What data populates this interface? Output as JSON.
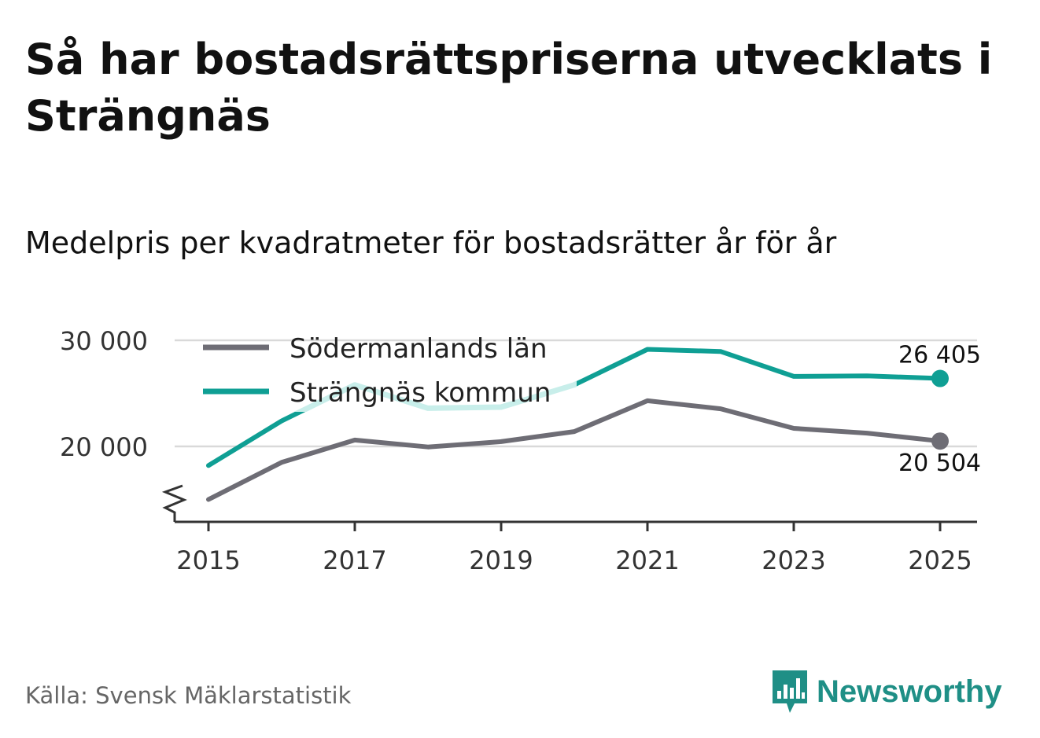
{
  "header": {
    "title": "Så har bostadsrättspriserna utvecklats i Strängnäs",
    "subtitle": "Medelpris per kvadratmeter för bostadsrätter år för år"
  },
  "footer": {
    "source": "Källa: Svensk Mäklarstatistik",
    "brand": "Newsworthy"
  },
  "colors": {
    "lan": "#6e6d75",
    "kommun": "#0f9f94",
    "kommun_faded": "#c8eeea",
    "grid": "#d9d9d9",
    "axis": "#333333"
  },
  "chart_data": {
    "type": "line",
    "title": "Så har bostadsrättspriserna utvecklats i Strängnäs",
    "subtitle": "Medelpris per kvadratmeter för bostadsrätter år för år",
    "xlabel": "",
    "ylabel": "",
    "x": [
      2015,
      2016,
      2017,
      2018,
      2019,
      2020,
      2021,
      2022,
      2023,
      2024,
      2025
    ],
    "xticks": [
      "2015",
      "2017",
      "2019",
      "2021",
      "2023",
      "2025"
    ],
    "yticks": [
      20000,
      30000
    ],
    "ytick_labels": [
      "20 000",
      "30 000"
    ],
    "ylim": [
      13000,
      31500
    ],
    "xlim": [
      2014.75,
      2025.5
    ],
    "grid": true,
    "legend_position": "top-left",
    "series": [
      {
        "name": "Södermanlands län",
        "color_key": "lan",
        "values": [
          15000,
          18500,
          20600,
          19950,
          20450,
          21400,
          24300,
          23550,
          21700,
          21250,
          20504
        ],
        "end_label": "20 504"
      },
      {
        "name": "Strängnäs kommun",
        "color_key": "kommun",
        "values": [
          18200,
          22400,
          25800,
          23600,
          23700,
          25800,
          29150,
          28950,
          26600,
          26650,
          26405
        ],
        "end_label": "26 405"
      }
    ]
  }
}
